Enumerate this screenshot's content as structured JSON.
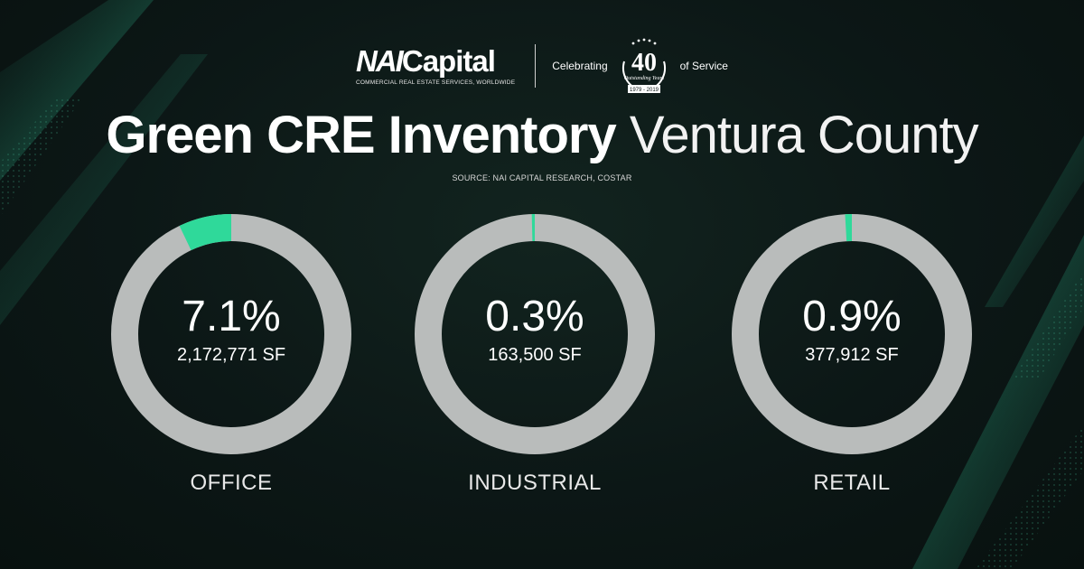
{
  "header": {
    "logo_nai": "NAI",
    "logo_capital": "Capital",
    "logo_tagline": "COMMERCIAL REAL ESTATE SERVICES, WORLDWIDE",
    "celebrating": "Celebrating",
    "years": "40",
    "badge_script": "Outstanding Years",
    "badge_years": "1979 - 2019",
    "service": "of Service"
  },
  "title": {
    "bold": "Green CRE Inventory",
    "light": "Ventura County"
  },
  "source": "SOURCE: NAI CAPITAL RESEARCH, COSTAR",
  "colors": {
    "ring": "#b9bcbb",
    "accent": "#2fd99a",
    "background": "#0c1716"
  },
  "chart_data": {
    "type": "pie",
    "charts": [
      {
        "category": "OFFICE",
        "percent_label": "7.1%",
        "value": 7.1,
        "sf": "2,172,771 SF"
      },
      {
        "category": "INDUSTRIAL",
        "percent_label": "0.3%",
        "value": 0.3,
        "sf": "163,500 SF"
      },
      {
        "category": "RETAIL",
        "percent_label": "0.9%",
        "value": 0.9,
        "sf": "377,912 SF"
      }
    ]
  }
}
